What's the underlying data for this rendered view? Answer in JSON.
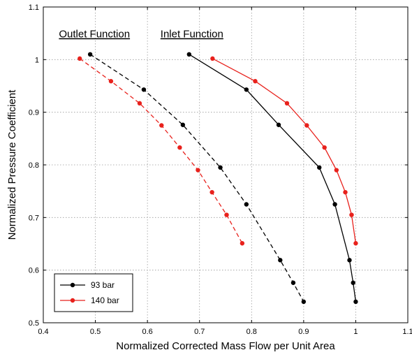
{
  "chart_data": {
    "type": "line",
    "title": "",
    "xlabel": "Normalized Corrected Mass Flow per Unit Area",
    "ylabel": "Normalized Pressure Coefficient",
    "xlim": [
      0.4,
      1.1
    ],
    "ylim": [
      0.5,
      1.1
    ],
    "xticks": [
      0.4,
      0.5,
      0.6,
      0.7,
      0.8,
      0.9,
      1,
      1.1
    ],
    "yticks": [
      0.5,
      0.6,
      0.7,
      0.8,
      0.9,
      1,
      1.1
    ],
    "xtick_labels": [
      "0.4",
      "0.5",
      "0.6",
      "0.7",
      "0.8",
      "0.9",
      "1",
      "1.1"
    ],
    "ytick_labels": [
      "0.5",
      "0.6",
      "0.7",
      "0.8",
      "0.9",
      "1",
      "1.1"
    ],
    "grid": true,
    "legend_position": "bottom-left",
    "legend": [
      {
        "label": "93 bar",
        "color": "#000000"
      },
      {
        "label": "140 bar",
        "color": "#e8211c"
      }
    ],
    "annotations": [
      {
        "text": "Outlet Function",
        "x": 0.43,
        "y": 1.042
      },
      {
        "text": "Inlet Function",
        "x": 0.625,
        "y": 1.042
      }
    ],
    "series": [
      {
        "name": "93 bar",
        "group": "Outlet Function",
        "color": "#000000",
        "dash": true,
        "x": [
          0.49,
          0.593,
          0.668,
          0.74,
          0.79,
          0.855,
          0.88,
          0.9
        ],
        "y": [
          1.01,
          0.943,
          0.876,
          0.795,
          0.725,
          0.619,
          0.576,
          0.54
        ]
      },
      {
        "name": "140 bar",
        "group": "Outlet Function",
        "color": "#e8211c",
        "dash": true,
        "x": [
          0.47,
          0.53,
          0.585,
          0.627,
          0.662,
          0.697,
          0.724,
          0.752,
          0.782
        ],
        "y": [
          1.002,
          0.959,
          0.917,
          0.875,
          0.833,
          0.79,
          0.748,
          0.705,
          0.651
        ]
      },
      {
        "name": "93 bar",
        "group": "Inlet Function",
        "color": "#000000",
        "dash": false,
        "x": [
          0.68,
          0.79,
          0.852,
          0.93,
          0.96,
          0.988,
          0.995,
          1.0
        ],
        "y": [
          1.01,
          0.943,
          0.876,
          0.795,
          0.725,
          0.619,
          0.576,
          0.54
        ]
      },
      {
        "name": "140 bar",
        "group": "Inlet Function",
        "color": "#e8211c",
        "dash": false,
        "x": [
          0.725,
          0.807,
          0.868,
          0.906,
          0.94,
          0.963,
          0.98,
          0.992,
          1.0
        ],
        "y": [
          1.002,
          0.959,
          0.917,
          0.875,
          0.833,
          0.79,
          0.748,
          0.705,
          0.651
        ]
      }
    ]
  }
}
